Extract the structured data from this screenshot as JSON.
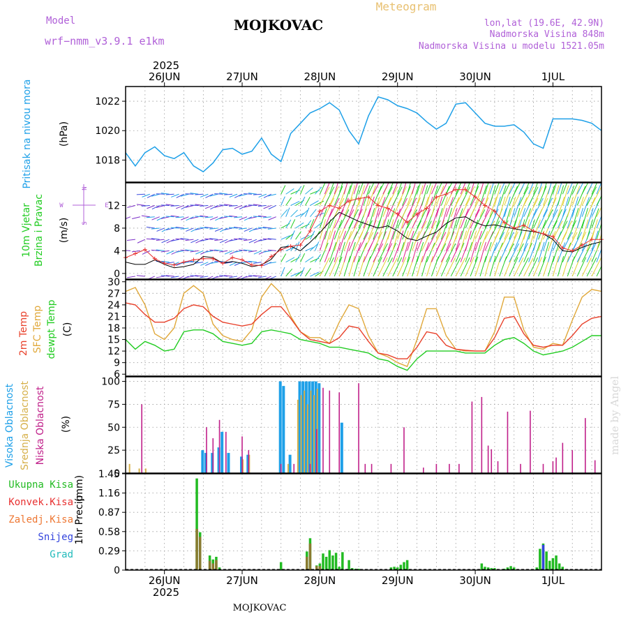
{
  "header": {
    "model_label": "Model",
    "model_name": "wrf−nmm_v3.9.1  e1km",
    "station": "MOJKOVAC",
    "meteogram": "Meteogram",
    "lonlat": "lon,lat (19.6E, 42.9N)",
    "elevation": "Nadmorska Visina 848m",
    "model_elevation": "Nadmorska Visina u modelu 1521.05m",
    "footer_station": "MOJKOVAC",
    "watermark": "made by Angel"
  },
  "time_axis": {
    "year": "2025",
    "days": [
      "26JUN",
      "27JUN",
      "28JUN",
      "29JUN",
      "30JUN",
      "1JUL"
    ],
    "day_offsets_hours": [
      0,
      24,
      48,
      72,
      96,
      120
    ],
    "range_hours": [
      -12,
      135
    ]
  },
  "colors": {
    "pressure": "#1ea0e8",
    "t2m": "#e8402a",
    "sfc": "#e0a83a",
    "dewpt": "#22cc22",
    "high_cloud": "#1ea0e8",
    "mid_cloud": "#d6b04a",
    "low_cloud": "#c0208a",
    "ukupna": "#22bb22",
    "konvek": "#e83030",
    "zaledj": "#ee7733",
    "snijeg": "#3344dd",
    "grad": "#22bbbb",
    "wind_mean": "#000000",
    "gust": "#e83030"
  },
  "chart_data": [
    {
      "type": "line",
      "name": "pressure",
      "ylabel": "Pritisak na nivou mora",
      "unit": "(hPa)",
      "ylim": [
        1016.5,
        1023.0
      ],
      "yticks": [
        1018,
        1020,
        1022
      ],
      "grid": true,
      "series": [
        {
          "name": "",
          "x": [
            -12,
            -9,
            -6,
            -3,
            0,
            3,
            6,
            9,
            12,
            15,
            18,
            21,
            24,
            27,
            30,
            33,
            36,
            39,
            42,
            45,
            48,
            51,
            54,
            57,
            60,
            63,
            66,
            69,
            72,
            75,
            78,
            81,
            84,
            87,
            90,
            93,
            96,
            99,
            102,
            105,
            108,
            111,
            114,
            117,
            120,
            123,
            126,
            129,
            132,
            135
          ],
          "y": [
            1018.5,
            1017.6,
            1018.5,
            1018.9,
            1018.3,
            1018.1,
            1018.5,
            1017.6,
            1017.2,
            1017.8,
            1018.7,
            1018.8,
            1018.4,
            1018.6,
            1019.5,
            1018.4,
            1017.9,
            1019.8,
            1020.5,
            1021.2,
            1021.5,
            1021.9,
            1021.4,
            1020.0,
            1019.1,
            1021.0,
            1022.3,
            1022.1,
            1021.7,
            1021.5,
            1021.2,
            1020.6,
            1020.1,
            1020.5,
            1021.8,
            1021.9,
            1021.2,
            1020.5,
            1020.3,
            1020.3,
            1020.4,
            1019.9,
            1019.1,
            1018.8,
            1020.8,
            1020.8,
            1020.8,
            1020.7,
            1020.5,
            1020.0
          ]
        }
      ]
    },
    {
      "type": "line",
      "name": "wind",
      "ylabel": "10m Vjetar",
      "ylabel2": "Brzina i Pravac",
      "unit": "(m/s)",
      "compass": {
        "n": "N",
        "s": "S",
        "w": "W",
        "e": "E"
      },
      "ylim": [
        -1,
        16
      ],
      "yticks": [
        0,
        4,
        8,
        12
      ],
      "grid": true,
      "series": [
        {
          "name": "mean",
          "x": [
            -12,
            -9,
            -6,
            -3,
            0,
            3,
            6,
            9,
            12,
            15,
            18,
            21,
            24,
            27,
            30,
            33,
            36,
            39,
            42,
            45,
            48,
            51,
            54,
            57,
            60,
            63,
            66,
            69,
            72,
            75,
            78,
            81,
            84,
            87,
            90,
            93,
            96,
            99,
            102,
            105,
            108,
            111,
            114,
            117,
            120,
            123,
            126,
            129,
            132,
            135
          ],
          "y": [
            2.0,
            1.6,
            1.6,
            2.4,
            1.6,
            1.0,
            1.2,
            1.6,
            3.0,
            2.8,
            1.8,
            2.1,
            1.8,
            1.2,
            1.5,
            2.5,
            4.6,
            4.8,
            4.0,
            5.5,
            7.2,
            9.1,
            10.8,
            10.0,
            9.2,
            8.6,
            8.0,
            8.4,
            7.5,
            6.2,
            5.8,
            6.6,
            7.3,
            8.8,
            9.8,
            10.0,
            9.0,
            8.4,
            8.6,
            8.2,
            7.9,
            7.6,
            7.4,
            7.0,
            6.0,
            4.0,
            3.8,
            4.6,
            5.2,
            5.6
          ]
        },
        {
          "name": "gust",
          "x": [
            -12,
            -9,
            -6,
            -3,
            0,
            3,
            6,
            9,
            12,
            15,
            18,
            21,
            24,
            27,
            30,
            33,
            36,
            39,
            42,
            45,
            48,
            51,
            54,
            57,
            60,
            63,
            66,
            69,
            72,
            75,
            78,
            81,
            84,
            87,
            90,
            93,
            96,
            99,
            102,
            105,
            108,
            111,
            114,
            117,
            120,
            123,
            126,
            129,
            132,
            135
          ],
          "y": [
            2.8,
            3.5,
            4.2,
            2.6,
            1.8,
            1.5,
            2.0,
            2.4,
            2.6,
            2.6,
            1.8,
            2.8,
            2.4,
            1.5,
            1.4,
            3.0,
            4.2,
            4.8,
            5.0,
            7.5,
            11.0,
            12.0,
            11.5,
            12.8,
            13.2,
            13.5,
            12.0,
            11.5,
            10.5,
            9.0,
            10.5,
            11.5,
            13.5,
            14.0,
            14.8,
            14.8,
            13.5,
            12.0,
            11.0,
            9.0,
            8.0,
            8.5,
            7.5,
            7.0,
            6.5,
            4.5,
            4.0,
            5.0,
            6.0,
            6.0
          ]
        }
      ]
    },
    {
      "type": "line",
      "name": "temperature",
      "ylabel": "2m Temp",
      "ylabel2": "SFC Temp",
      "ylabel3": "dewpt Temp",
      "unit": "(C)",
      "ylim": [
        5.5,
        30.5
      ],
      "yticks": [
        6,
        9,
        12,
        15,
        18,
        21,
        24,
        27,
        30
      ],
      "grid": true,
      "series": [
        {
          "name": "sfc",
          "x": [
            -12,
            -9,
            -6,
            -3,
            0,
            3,
            6,
            9,
            12,
            15,
            18,
            21,
            24,
            27,
            30,
            33,
            36,
            39,
            42,
            45,
            48,
            51,
            54,
            57,
            60,
            63,
            66,
            69,
            72,
            75,
            78,
            81,
            84,
            87,
            90,
            93,
            96,
            99,
            102,
            105,
            108,
            111,
            114,
            117,
            120,
            123,
            126,
            129,
            132,
            135
          ],
          "y": [
            27.5,
            28.5,
            24,
            16.5,
            15,
            18,
            27,
            29,
            27,
            19,
            16,
            15,
            14.5,
            17.5,
            26,
            29.5,
            27,
            21,
            17,
            15.5,
            15.5,
            14,
            19.5,
            24,
            23,
            16,
            11.5,
            10.5,
            9,
            8,
            15,
            23,
            23,
            16,
            12.5,
            12,
            12,
            12,
            17,
            26,
            26,
            17.5,
            13,
            12.5,
            14,
            13.5,
            20,
            26,
            28,
            27.5
          ]
        },
        {
          "name": "t2m",
          "x": [
            -12,
            -9,
            -6,
            -3,
            0,
            3,
            6,
            9,
            12,
            15,
            18,
            21,
            24,
            27,
            30,
            33,
            36,
            39,
            42,
            45,
            48,
            51,
            54,
            57,
            60,
            63,
            66,
            69,
            72,
            75,
            78,
            81,
            84,
            87,
            90,
            93,
            96,
            99,
            102,
            105,
            108,
            111,
            114,
            117,
            120,
            123,
            126,
            129,
            132,
            135
          ],
          "y": [
            24.5,
            24,
            21.5,
            19.5,
            19.5,
            20.5,
            23,
            24,
            23.5,
            21,
            19.5,
            19,
            18.5,
            19,
            21.5,
            23.5,
            23.5,
            20.5,
            17,
            15,
            14.5,
            14,
            15.5,
            18.5,
            18,
            14.5,
            11.5,
            11,
            10,
            10,
            13,
            17,
            16.5,
            13.5,
            12.5,
            12.2,
            12,
            12,
            15.5,
            20.5,
            21,
            16.5,
            13.5,
            13,
            13.5,
            13.5,
            16,
            19,
            20.5,
            21
          ]
        },
        {
          "name": "dewpt",
          "x": [
            -12,
            -9,
            -6,
            -3,
            0,
            3,
            6,
            9,
            12,
            15,
            18,
            21,
            24,
            27,
            30,
            33,
            36,
            39,
            42,
            45,
            48,
            51,
            54,
            57,
            60,
            63,
            66,
            69,
            72,
            75,
            78,
            81,
            84,
            87,
            90,
            93,
            96,
            99,
            102,
            105,
            108,
            111,
            114,
            117,
            120,
            123,
            126,
            129,
            132,
            135
          ],
          "y": [
            15,
            12.5,
            14.5,
            13.5,
            12,
            12.5,
            17,
            17.5,
            17.5,
            16.5,
            14.5,
            14,
            13.5,
            14,
            17,
            17.5,
            17,
            16.5,
            15,
            14.5,
            14,
            13,
            13,
            12.5,
            12,
            11.5,
            10,
            9.5,
            8,
            7,
            10,
            12,
            12,
            12,
            12,
            11.5,
            11.5,
            11.5,
            13.5,
            15,
            15.5,
            14,
            12,
            11,
            11.5,
            12,
            13,
            14.5,
            16,
            16
          ]
        }
      ]
    },
    {
      "type": "bar",
      "name": "clouds",
      "ylabel": "Visoka Oblacnost",
      "ylabel2": "Srednja Oblacnost",
      "ylabel3": "Niska Oblacnost",
      "unit": "(%)",
      "ylim": [
        0,
        105
      ],
      "yticks": [
        0,
        25,
        50,
        75,
        100
      ],
      "grid": true,
      "series": [
        {
          "name": "high",
          "x": [
            12,
            13,
            15,
            17,
            18,
            20,
            24,
            26,
            36,
            37,
            39,
            42,
            43,
            44,
            45,
            46,
            47,
            48,
            55
          ],
          "y": [
            25,
            22,
            22,
            28,
            45,
            22,
            18,
            20,
            100,
            95,
            20,
            100,
            100,
            100,
            100,
            100,
            100,
            98,
            55
          ]
        },
        {
          "name": "mid",
          "x": [
            -11,
            -8,
            -6,
            24,
            26,
            38,
            41,
            42,
            43,
            44,
            45,
            46,
            47
          ],
          "y": [
            10,
            5,
            5,
            15,
            20,
            10,
            80,
            85,
            90,
            75,
            90,
            85,
            92
          ]
        },
        {
          "name": "low",
          "x": [
            -7,
            13,
            15,
            17,
            19,
            24,
            26,
            36,
            40,
            45,
            47,
            49,
            51,
            54,
            60,
            62,
            64,
            70,
            74,
            80,
            84,
            88,
            91,
            95,
            98,
            100,
            101,
            103,
            106,
            110,
            113,
            117,
            120,
            121,
            123,
            126,
            130,
            133
          ],
          "y": [
            75,
            50,
            38,
            58,
            45,
            40,
            25,
            10,
            10,
            10,
            48,
            93,
            90,
            88,
            98,
            10,
            10,
            10,
            50,
            6,
            10,
            10,
            10,
            78,
            83,
            30,
            26,
            13,
            67,
            10,
            68,
            10,
            13,
            17,
            33,
            25,
            60,
            14
          ]
        }
      ]
    },
    {
      "type": "bar",
      "name": "precip",
      "ylabel": "1hr Precip",
      "unit": "(mm)",
      "legend": [
        "Ukupna  Kisa",
        "Konvek.Kisa",
        "Zaledj.Kisa",
        "Snijeg",
        "Grad"
      ],
      "ylim": [
        0,
        1.45
      ],
      "yticks": [
        0,
        0.29,
        0.58,
        0.87,
        1.16,
        1.45
      ],
      "ytick_labels": [
        "0",
        "0.29",
        "0.58",
        "0.87",
        "1.16",
        "1.45"
      ],
      "grid": true,
      "series": [
        {
          "name": "ukupna",
          "x": [
            10,
            11,
            14,
            15,
            16,
            17,
            36,
            44,
            45,
            47,
            48,
            49,
            50,
            51,
            52,
            53,
            54,
            55,
            57,
            58,
            59,
            60,
            70,
            71,
            72,
            73,
            74,
            75,
            98,
            99,
            100,
            101,
            102,
            105,
            106,
            107,
            108,
            115,
            116,
            117,
            118,
            119,
            120,
            121,
            122,
            123
          ],
          "y": [
            1.38,
            0.57,
            0.22,
            0.16,
            0.2,
            0.04,
            0.12,
            0.28,
            0.48,
            0.07,
            0.1,
            0.25,
            0.2,
            0.3,
            0.22,
            0.26,
            0.05,
            0.27,
            0.15,
            0.03,
            0.02,
            0.02,
            0.04,
            0.05,
            0.04,
            0.08,
            0.12,
            0.15,
            0.1,
            0.05,
            0.04,
            0.03,
            0.03,
            0.02,
            0.04,
            0.06,
            0.04,
            0.04,
            0.32,
            0.4,
            0.28,
            0.14,
            0.18,
            0.22,
            0.1,
            0.05
          ]
        },
        {
          "name": "konvek",
          "x": [
            10,
            11,
            14,
            15,
            16,
            44,
            45,
            47,
            48
          ],
          "y": [
            0.62,
            0.5,
            0.14,
            0.1,
            0.15,
            0.2,
            0.4,
            0.06,
            0.06
          ]
        },
        {
          "name": "snijeg",
          "x": [
            117
          ],
          "y": [
            0.38
          ]
        }
      ]
    }
  ]
}
